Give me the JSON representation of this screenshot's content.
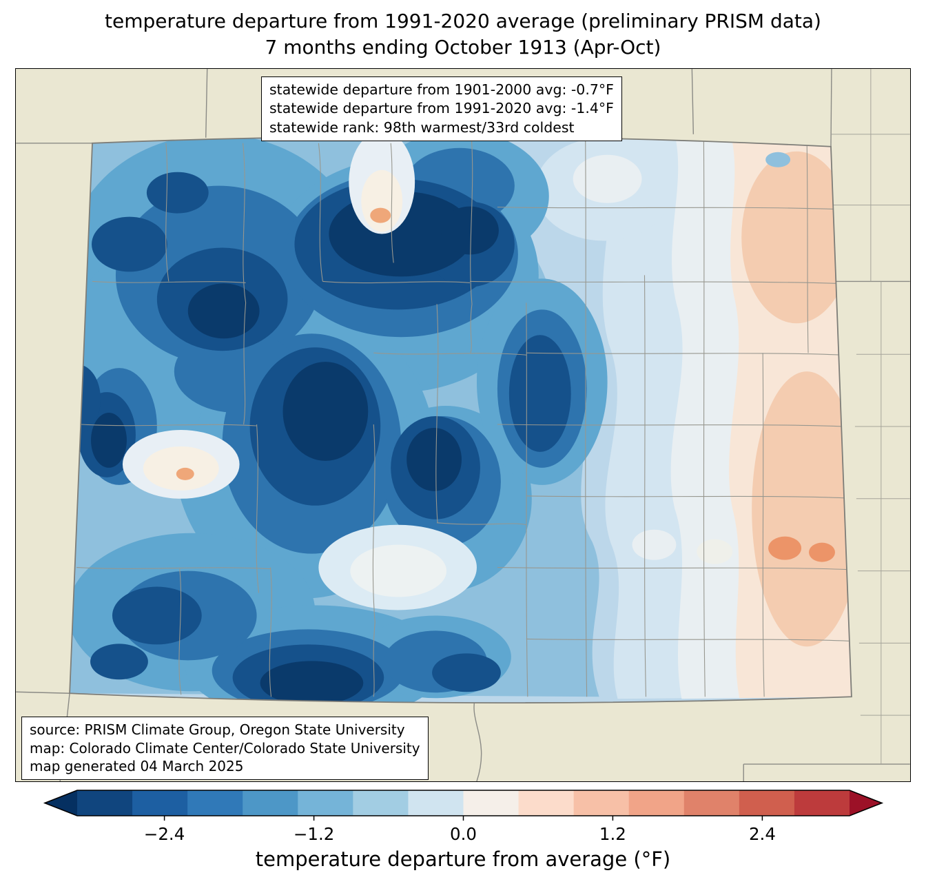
{
  "title": {
    "line1": "temperature departure from 1991-2020 average (preliminary PRISM data)",
    "line2": "7 months ending October 1913 (Apr-Oct)"
  },
  "stats_box": {
    "lines": [
      "statewide departure from 1901-2000 avg: -0.7°F",
      "statewide departure from 1991-2020 avg: -1.4°F",
      "statewide rank: 98th warmest/33rd coldest"
    ]
  },
  "source_box": {
    "lines": [
      "source: PRISM Climate Group, Oregon State University",
      "map: Colorado Climate Center/Colorado State University",
      "map generated 04 March 2025"
    ]
  },
  "colorbar": {
    "label": "temperature departure from average (°F)",
    "ticks": [
      "−2.4",
      "−1.2",
      "0.0",
      "1.2",
      "2.4"
    ],
    "tick_values": [
      -2.4,
      -1.2,
      0.0,
      1.2,
      2.4
    ],
    "segment_colors": [
      "#10457e",
      "#1d5fa2",
      "#3079b8",
      "#4d97c7",
      "#75b4d8",
      "#a2cde3",
      "#d0e4f0",
      "#f5efe9",
      "#fcdccb",
      "#f7c0a7",
      "#f1a488",
      "#e0826a",
      "#d05f4e",
      "#bd3b3c"
    ],
    "left_arrow_color": "#053061",
    "right_arrow_color": "#9c1127"
  },
  "map": {
    "land_color": "#eae7d2",
    "state_base_color": "#bcd7ea",
    "border_color": "#8a8a85",
    "county_line_color": "#97978f"
  }
}
